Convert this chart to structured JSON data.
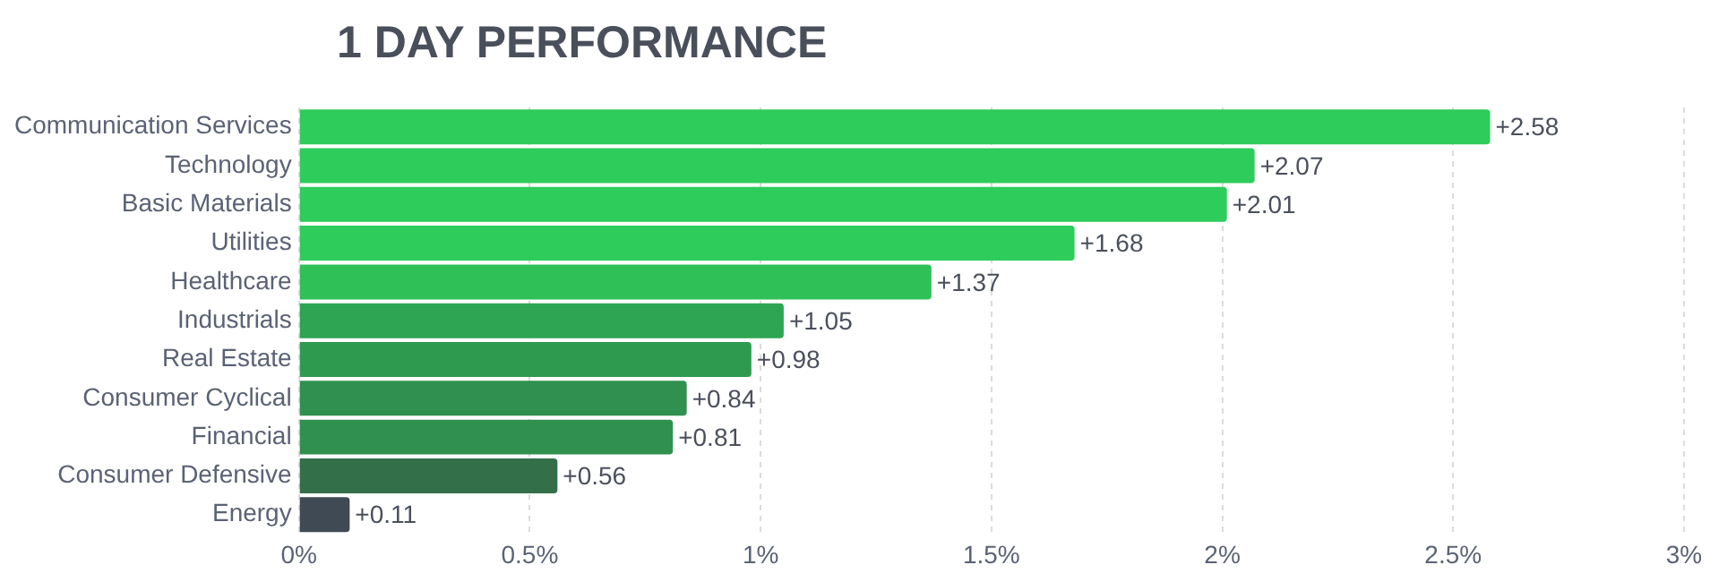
{
  "chart_data": {
    "type": "bar",
    "orientation": "horizontal",
    "title": "1 DAY PERFORMANCE",
    "categories": [
      "Communication Services",
      "Technology",
      "Basic Materials",
      "Utilities",
      "Healthcare",
      "Industrials",
      "Real Estate",
      "Consumer Cyclical",
      "Financial",
      "Consumer Defensive",
      "Energy"
    ],
    "values": [
      2.58,
      2.07,
      2.01,
      1.68,
      1.37,
      1.05,
      0.98,
      0.84,
      0.81,
      0.56,
      0.11
    ],
    "colors": [
      "#2ecc5a",
      "#2ecc5a",
      "#2ecc5a",
      "#2ecc5a",
      "#30c058",
      "#2da552",
      "#2e9a4f",
      "#30904f",
      "#30904f",
      "#33704a",
      "#3f4a54"
    ],
    "value_labels": [
      "+2.58",
      "+2.07",
      "+2.01",
      "+1.68",
      "+1.37",
      "+1.05",
      "+0.98",
      "+0.84",
      "+0.81",
      "+0.56",
      "+0.11"
    ],
    "xlim": [
      0,
      3
    ],
    "xticks": [
      {
        "value": 0,
        "label": "0%"
      },
      {
        "value": 0.5,
        "label": "0.5%"
      },
      {
        "value": 1,
        "label": "1%"
      },
      {
        "value": 1.5,
        "label": "1.5%"
      },
      {
        "value": 2,
        "label": "2%"
      },
      {
        "value": 2.5,
        "label": "2.5%"
      },
      {
        "value": 3,
        "label": "3%"
      }
    ],
    "grid": "x",
    "legend": false
  }
}
